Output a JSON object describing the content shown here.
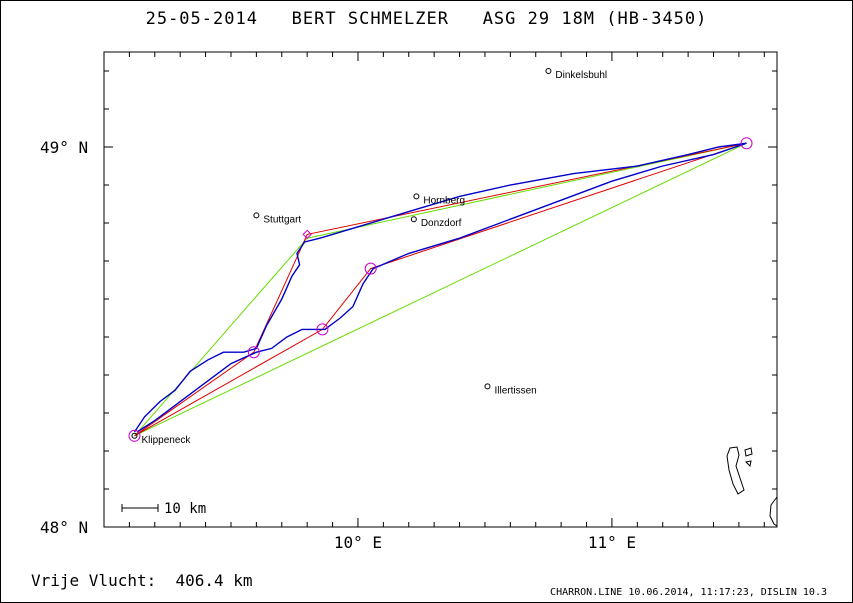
{
  "header": {
    "date": "25-05-2014",
    "pilot": "BERT SCHMELZER",
    "aircraft": "ASG 29 18M (HB-3450)"
  },
  "axes": {
    "y_labels": [
      {
        "text": "49° N",
        "lat": 49.0
      },
      {
        "text": "48° N",
        "lat": 48.0
      }
    ],
    "x_labels": [
      {
        "text": "10° E",
        "lon": 10.0
      },
      {
        "text": "11° E",
        "lon": 11.0
      }
    ],
    "lon_range": [
      9.0,
      11.65
    ],
    "lat_range": [
      48.0,
      49.25
    ]
  },
  "places": [
    {
      "name": "Dinkelsbuhl",
      "lon": 10.75,
      "lat": 49.2
    },
    {
      "name": "Hornberg",
      "lon": 10.23,
      "lat": 48.87
    },
    {
      "name": "Stuttgart",
      "lon": 9.6,
      "lat": 48.82
    },
    {
      "name": "Donzdorf",
      "lon": 10.22,
      "lat": 48.81
    },
    {
      "name": "Illertissen",
      "lon": 10.51,
      "lat": 48.37
    },
    {
      "name": "Klippeneck",
      "lon": 9.12,
      "lat": 48.24
    }
  ],
  "scale_bar": {
    "label": "10 km"
  },
  "task": {
    "turnpoints": [
      {
        "lon": 9.12,
        "lat": 48.24
      },
      {
        "lon": 9.59,
        "lat": 48.46
      },
      {
        "lon": 9.86,
        "lat": 48.52
      },
      {
        "lon": 10.05,
        "lat": 48.68
      },
      {
        "lon": 11.53,
        "lat": 49.01
      }
    ],
    "start_marker": {
      "lon": 9.8,
      "lat": 48.77
    },
    "optimized_route": [
      {
        "lon": 9.12,
        "lat": 48.24
      },
      {
        "lon": 9.59,
        "lat": 48.46
      },
      {
        "lon": 9.76,
        "lat": 48.71
      },
      {
        "lon": 9.8,
        "lat": 48.77
      },
      {
        "lon": 11.53,
        "lat": 49.01
      },
      {
        "lon": 10.05,
        "lat": 48.68
      },
      {
        "lon": 9.86,
        "lat": 48.52
      },
      {
        "lon": 9.12,
        "lat": 48.24
      }
    ],
    "green_route": [
      {
        "lon": 9.12,
        "lat": 48.24
      },
      {
        "lon": 9.8,
        "lat": 48.76
      },
      {
        "lon": 11.53,
        "lat": 49.01
      },
      {
        "lon": 9.12,
        "lat": 48.24
      }
    ]
  },
  "track": [
    {
      "lon": 9.12,
      "lat": 48.25
    },
    {
      "lon": 9.16,
      "lat": 48.29
    },
    {
      "lon": 9.22,
      "lat": 48.33
    },
    {
      "lon": 9.28,
      "lat": 48.36
    },
    {
      "lon": 9.34,
      "lat": 48.41
    },
    {
      "lon": 9.41,
      "lat": 48.44
    },
    {
      "lon": 9.47,
      "lat": 48.46
    },
    {
      "lon": 9.55,
      "lat": 48.46
    },
    {
      "lon": 9.6,
      "lat": 48.47
    },
    {
      "lon": 9.64,
      "lat": 48.53
    },
    {
      "lon": 9.7,
      "lat": 48.6
    },
    {
      "lon": 9.74,
      "lat": 48.66
    },
    {
      "lon": 9.77,
      "lat": 48.69
    },
    {
      "lon": 9.76,
      "lat": 48.72
    },
    {
      "lon": 9.79,
      "lat": 48.75
    },
    {
      "lon": 9.85,
      "lat": 48.76
    },
    {
      "lon": 10.0,
      "lat": 48.79
    },
    {
      "lon": 10.2,
      "lat": 48.83
    },
    {
      "lon": 10.4,
      "lat": 48.87
    },
    {
      "lon": 10.6,
      "lat": 48.9
    },
    {
      "lon": 10.85,
      "lat": 48.93
    },
    {
      "lon": 11.1,
      "lat": 48.95
    },
    {
      "lon": 11.3,
      "lat": 48.98
    },
    {
      "lon": 11.42,
      "lat": 49.0
    },
    {
      "lon": 11.53,
      "lat": 49.01
    },
    {
      "lon": 11.4,
      "lat": 48.98
    },
    {
      "lon": 11.2,
      "lat": 48.95
    },
    {
      "lon": 11.0,
      "lat": 48.91
    },
    {
      "lon": 10.8,
      "lat": 48.86
    },
    {
      "lon": 10.6,
      "lat": 48.81
    },
    {
      "lon": 10.4,
      "lat": 48.76
    },
    {
      "lon": 10.2,
      "lat": 48.72
    },
    {
      "lon": 10.06,
      "lat": 48.68
    },
    {
      "lon": 10.02,
      "lat": 48.64
    },
    {
      "lon": 9.98,
      "lat": 48.58
    },
    {
      "lon": 9.93,
      "lat": 48.55
    },
    {
      "lon": 9.87,
      "lat": 48.52
    },
    {
      "lon": 9.78,
      "lat": 48.52
    },
    {
      "lon": 9.72,
      "lat": 48.5
    },
    {
      "lon": 9.66,
      "lat": 48.47
    },
    {
      "lon": 9.6,
      "lat": 48.46
    },
    {
      "lon": 9.5,
      "lat": 48.43
    },
    {
      "lon": 9.4,
      "lat": 48.38
    },
    {
      "lon": 9.3,
      "lat": 48.33
    },
    {
      "lon": 9.2,
      "lat": 48.28
    },
    {
      "lon": 9.13,
      "lat": 48.25
    }
  ],
  "footer": {
    "free_flight": "Vrije Vlucht:  406.4 km",
    "credits": "CHARRON.LINE 10.06.2014, 11:17:23, DISLIN 10.3"
  },
  "colors": {
    "track": "#0000cc",
    "optimized_route": "#e00000",
    "green_route": "#66dd00",
    "turnpoint": "#cc00cc",
    "frame": "#000000"
  }
}
